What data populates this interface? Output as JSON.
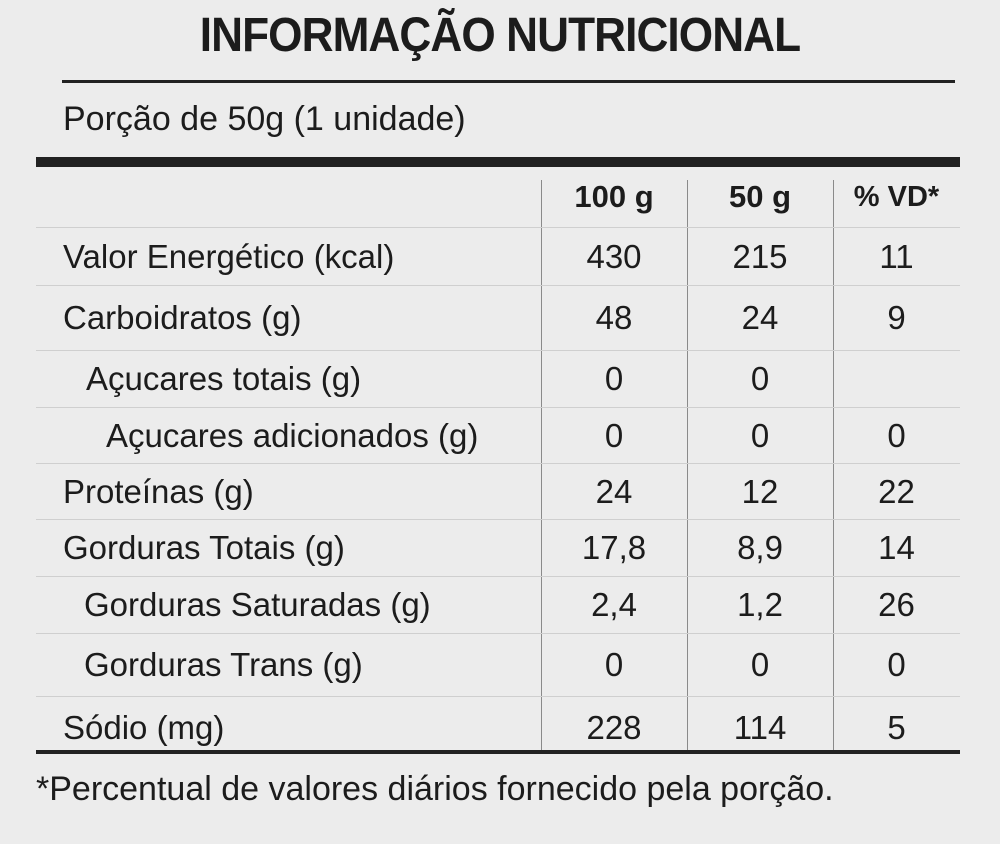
{
  "title": "INFORMAÇÃO NUTRICIONAL",
  "portion": "Porção de 50g (1 unidade)",
  "columns": [
    "100 g",
    "50 g",
    "% VD*"
  ],
  "rows": [
    {
      "label": "Valor Energético (kcal)",
      "v100": "430",
      "v50": "215",
      "vd": "11"
    },
    {
      "label": "Carboidratos (g)",
      "v100": "48",
      "v50": "24",
      "vd": "9"
    },
    {
      "label": "Açucares totais (g)",
      "v100": "0",
      "v50": "0",
      "vd": ""
    },
    {
      "label": "Açucares adicionados (g)",
      "v100": "0",
      "v50": "0",
      "vd": "0"
    },
    {
      "label": "Proteínas (g)",
      "v100": "24",
      "v50": "12",
      "vd": "22"
    },
    {
      "label": "Gorduras Totais (g)",
      "v100": "17,8",
      "v50": "8,9",
      "vd": "14"
    },
    {
      "label": "Gorduras Saturadas (g)",
      "v100": "2,4",
      "v50": "1,2",
      "vd": "26"
    },
    {
      "label": "Gorduras Trans (g)",
      "v100": "0",
      "v50": "0",
      "vd": "0"
    },
    {
      "label": "Sódio (mg)",
      "v100": "228",
      "v50": "114",
      "vd": "5"
    }
  ],
  "footnote": "*Percentual de valores diários fornecido pela porção."
}
